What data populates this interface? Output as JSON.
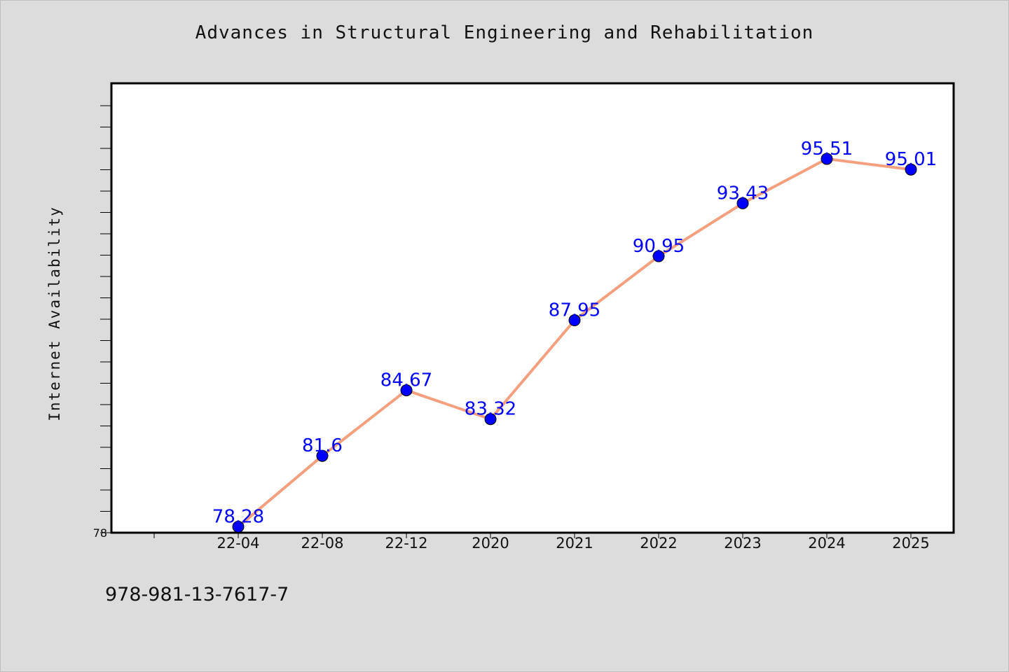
{
  "chart_data": {
    "type": "line",
    "title": "Advances in Structural Engineering and Rehabilitation",
    "xlabel": "",
    "ylabel": "Internet Availability",
    "categories": [
      "22-04",
      "22-08",
      "22-12",
      "2020",
      "2021",
      "2022",
      "2023",
      "2024",
      "2025"
    ],
    "series": [
      {
        "values": [
          78.28,
          81.6,
          84.67,
          83.32,
          87.95,
          90.95,
          93.43,
          95.51,
          95.01
        ],
        "data_labels": [
          "78.28",
          "81.6",
          "84.67",
          "83.32",
          "87.95",
          "90.95",
          "93.43",
          "95.51",
          "95.01"
        ]
      }
    ],
    "y_tick_labels": [
      "78"
    ],
    "ylim": [
      78,
      98
    ],
    "grid": false,
    "legend": "none",
    "colors": {
      "line": "#f4a07f",
      "marker": "#0000ff",
      "data_label": "#0000ff",
      "plot_background": "#ffffff",
      "page_background": "#dcdcdc"
    }
  },
  "footer": {
    "isbn": "978-981-13-7617-7"
  }
}
